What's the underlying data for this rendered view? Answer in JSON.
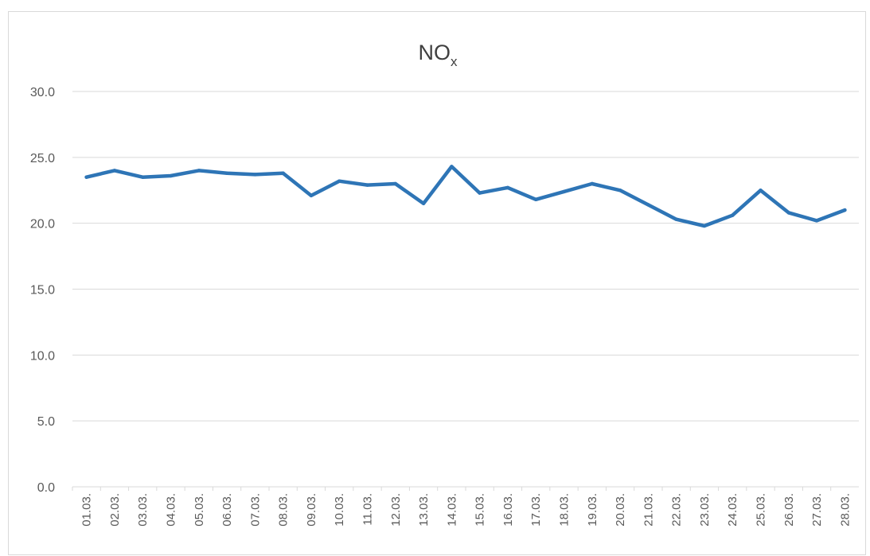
{
  "chart_data": {
    "type": "line",
    "title": "NO",
    "title_subscript": "x",
    "xlabel": "",
    "ylabel": "",
    "ylim": [
      0,
      30
    ],
    "yticks": [
      "0.0",
      "5.0",
      "10.0",
      "15.0",
      "20.0",
      "25.0",
      "30.0"
    ],
    "grid": true,
    "legend": "none",
    "categories": [
      "01.03.",
      "02.03.",
      "03.03.",
      "04.03.",
      "05.03.",
      "06.03.",
      "07.03.",
      "08.03.",
      "09.03.",
      "10.03.",
      "11.03.",
      "12.03.",
      "13.03.",
      "14.03.",
      "15.03.",
      "16.03.",
      "17.03.",
      "18.03.",
      "19.03.",
      "20.03.",
      "21.03.",
      "22.03.",
      "23.03.",
      "24.03.",
      "25.03.",
      "26.03.",
      "27.03.",
      "28.03."
    ],
    "series": [
      {
        "color": "#2e75b6",
        "values": [
          23.5,
          24.0,
          23.5,
          23.6,
          24.0,
          23.8,
          23.7,
          23.8,
          22.1,
          23.2,
          22.9,
          23.0,
          21.5,
          24.3,
          22.3,
          22.7,
          21.8,
          22.4,
          23.0,
          22.5,
          21.4,
          20.3,
          19.8,
          20.6,
          22.5,
          20.8,
          20.2,
          21.0
        ]
      }
    ]
  }
}
